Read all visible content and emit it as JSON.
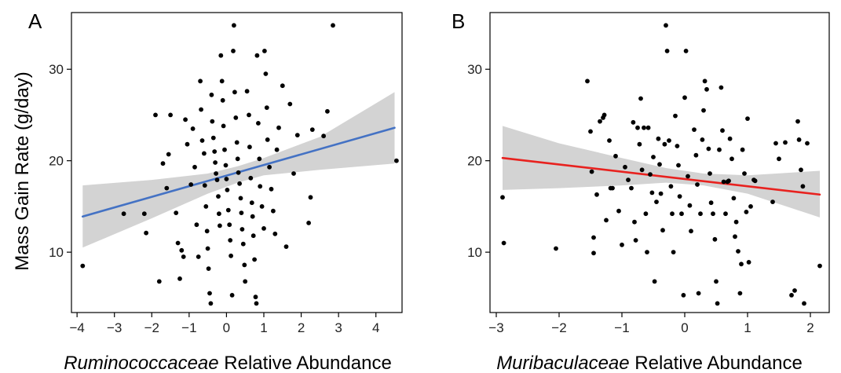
{
  "y_axis_title": "Mass Gain Rate (g/day)",
  "chart_data": [
    {
      "type": "scatter",
      "panel_label": "A",
      "xlabel_italic": "Ruminococcaceae",
      "xlabel_rest": " Relative Abundance",
      "xlim": [
        -4.15,
        4.7
      ],
      "ylim": [
        3.4,
        36.2
      ],
      "xticks": [
        -4,
        -3,
        -2,
        -1,
        0,
        1,
        2,
        3,
        4
      ],
      "yticks": [
        10,
        20,
        30
      ],
      "fit_color": "#4472c4",
      "band_color": "#d3d3d3",
      "fit": {
        "x0": -3.85,
        "y0": 13.9,
        "x1": 4.5,
        "y1": 23.6
      },
      "band": {
        "x": [
          -3.85,
          -2.0,
          -0.5,
          0.3,
          1.0,
          2.5,
          4.5
        ],
        "upper": [
          17.3,
          17.9,
          18.6,
          19.4,
          20.3,
          22.6,
          27.5
        ],
        "lower": [
          10.5,
          13.7,
          16.4,
          17.6,
          18.4,
          19.0,
          19.7
        ]
      },
      "points": [
        [
          -3.85,
          8.5
        ],
        [
          -2.75,
          14.2
        ],
        [
          -2.2,
          14.2
        ],
        [
          -2.15,
          12.1
        ],
        [
          -1.9,
          25.0
        ],
        [
          -1.8,
          6.8
        ],
        [
          -1.7,
          19.7
        ],
        [
          -1.6,
          17.0
        ],
        [
          -1.55,
          20.7
        ],
        [
          -1.5,
          25.0
        ],
        [
          -1.35,
          14.3
        ],
        [
          -1.3,
          11.0
        ],
        [
          -1.25,
          7.1
        ],
        [
          -1.2,
          10.2
        ],
        [
          -1.15,
          9.5
        ],
        [
          -1.1,
          24.5
        ],
        [
          -1.05,
          21.8
        ],
        [
          -0.95,
          17.4
        ],
        [
          -0.9,
          23.5
        ],
        [
          -0.85,
          19.3
        ],
        [
          -0.8,
          13.0
        ],
        [
          -0.75,
          9.5
        ],
        [
          -0.7,
          28.7
        ],
        [
          -0.68,
          25.6
        ],
        [
          -0.65,
          22.2
        ],
        [
          -0.6,
          20.8
        ],
        [
          -0.58,
          17.3
        ],
        [
          -0.55,
          15.0
        ],
        [
          -0.52,
          12.3
        ],
        [
          -0.5,
          10.4
        ],
        [
          -0.48,
          8.2
        ],
        [
          -0.45,
          5.5
        ],
        [
          -0.42,
          4.4
        ],
        [
          -0.4,
          27.2
        ],
        [
          -0.38,
          24.3
        ],
        [
          -0.35,
          22.5
        ],
        [
          -0.32,
          21.0
        ],
        [
          -0.3,
          19.8
        ],
        [
          -0.28,
          18.6
        ],
        [
          -0.25,
          17.9
        ],
        [
          -0.22,
          16.1
        ],
        [
          -0.2,
          14.2
        ],
        [
          -0.18,
          12.9
        ],
        [
          -0.15,
          31.5
        ],
        [
          -0.12,
          28.7
        ],
        [
          -0.1,
          26.6
        ],
        [
          -0.08,
          23.8
        ],
        [
          -0.05,
          21.2
        ],
        [
          -0.02,
          19.5
        ],
        [
          0.0,
          18.0
        ],
        [
          0.02,
          16.8
        ],
        [
          0.05,
          14.6
        ],
        [
          0.08,
          13.0
        ],
        [
          0.1,
          11.3
        ],
        [
          0.12,
          9.6
        ],
        [
          0.15,
          5.3
        ],
        [
          0.18,
          32.0
        ],
        [
          0.2,
          34.8
        ],
        [
          0.22,
          27.5
        ],
        [
          0.25,
          24.7
        ],
        [
          0.28,
          22.0
        ],
        [
          0.3,
          20.2
        ],
        [
          0.32,
          18.7
        ],
        [
          0.35,
          17.5
        ],
        [
          0.38,
          15.9
        ],
        [
          0.4,
          14.3
        ],
        [
          0.42,
          12.5
        ],
        [
          0.45,
          10.9
        ],
        [
          0.48,
          8.6
        ],
        [
          0.5,
          6.8
        ],
        [
          0.55,
          27.6
        ],
        [
          0.6,
          25.0
        ],
        [
          0.62,
          21.5
        ],
        [
          0.65,
          18.1
        ],
        [
          0.68,
          15.4
        ],
        [
          0.7,
          13.9
        ],
        [
          0.72,
          11.8
        ],
        [
          0.75,
          9.2
        ],
        [
          0.78,
          5.1
        ],
        [
          0.8,
          4.4
        ],
        [
          0.82,
          31.5
        ],
        [
          0.85,
          24.1
        ],
        [
          0.88,
          20.2
        ],
        [
          0.9,
          17.2
        ],
        [
          0.95,
          15.0
        ],
        [
          1.0,
          12.6
        ],
        [
          1.02,
          32.0
        ],
        [
          1.05,
          29.5
        ],
        [
          1.08,
          25.8
        ],
        [
          1.1,
          22.3
        ],
        [
          1.15,
          19.3
        ],
        [
          1.2,
          16.9
        ],
        [
          1.25,
          14.5
        ],
        [
          1.3,
          12.0
        ],
        [
          1.35,
          21.2
        ],
        [
          1.4,
          23.6
        ],
        [
          1.5,
          28.2
        ],
        [
          1.6,
          10.6
        ],
        [
          1.7,
          26.2
        ],
        [
          1.8,
          18.6
        ],
        [
          1.9,
          22.8
        ],
        [
          2.2,
          13.2
        ],
        [
          2.25,
          16.0
        ],
        [
          2.3,
          23.4
        ],
        [
          2.6,
          22.7
        ],
        [
          2.7,
          25.4
        ],
        [
          2.85,
          34.8
        ],
        [
          4.55,
          20.0
        ]
      ]
    },
    {
      "type": "scatter",
      "panel_label": "B",
      "xlabel_italic": "Muribaculaceae",
      "xlabel_rest": " Relative Abundance",
      "xlim": [
        -3.1,
        2.3
      ],
      "ylim": [
        3.4,
        36.2
      ],
      "xticks": [
        -3,
        -2,
        -1,
        0,
        1,
        2
      ],
      "yticks": [
        10,
        20,
        30
      ],
      "fit_color": "#e8221f",
      "band_color": "#d3d3d3",
      "fit": {
        "x0": -2.9,
        "y0": 20.3,
        "x1": 2.15,
        "y1": 16.3
      },
      "band": {
        "x": [
          -2.9,
          -2.0,
          -1.0,
          -0.3,
          0.3,
          1.0,
          2.15
        ],
        "upper": [
          23.8,
          21.9,
          20.3,
          19.2,
          18.6,
          18.4,
          18.9
        ],
        "lower": [
          16.8,
          17.0,
          17.3,
          17.6,
          17.3,
          16.4,
          13.8
        ]
      },
      "points": [
        [
          -2.9,
          16.0
        ],
        [
          -2.88,
          11.0
        ],
        [
          -2.05,
          10.4
        ],
        [
          -1.55,
          28.7
        ],
        [
          -1.5,
          23.2
        ],
        [
          -1.48,
          18.8
        ],
        [
          -1.45,
          11.6
        ],
        [
          -1.45,
          9.9
        ],
        [
          -1.4,
          16.3
        ],
        [
          -1.35,
          24.3
        ],
        [
          -1.3,
          24.7
        ],
        [
          -1.28,
          25.0
        ],
        [
          -1.25,
          13.5
        ],
        [
          -1.2,
          22.2
        ],
        [
          -1.18,
          17.0
        ],
        [
          -1.15,
          17.0
        ],
        [
          -1.1,
          20.5
        ],
        [
          -1.05,
          14.5
        ],
        [
          -1.0,
          10.8
        ],
        [
          -0.95,
          19.3
        ],
        [
          -0.9,
          17.9
        ],
        [
          -0.85,
          17.0
        ],
        [
          -0.82,
          24.2
        ],
        [
          -0.8,
          13.3
        ],
        [
          -0.78,
          11.3
        ],
        [
          -0.75,
          23.6
        ],
        [
          -0.72,
          21.8
        ],
        [
          -0.7,
          26.8
        ],
        [
          -0.68,
          19.0
        ],
        [
          -0.65,
          23.6
        ],
        [
          -0.62,
          14.2
        ],
        [
          -0.6,
          10.0
        ],
        [
          -0.58,
          23.6
        ],
        [
          -0.55,
          18.5
        ],
        [
          -0.52,
          16.5
        ],
        [
          -0.5,
          20.4
        ],
        [
          -0.48,
          6.8
        ],
        [
          -0.45,
          15.5
        ],
        [
          -0.42,
          22.4
        ],
        [
          -0.4,
          19.6
        ],
        [
          -0.38,
          16.4
        ],
        [
          -0.35,
          12.4
        ],
        [
          -0.32,
          21.8
        ],
        [
          -0.3,
          34.8
        ],
        [
          -0.28,
          32.0
        ],
        [
          -0.25,
          22.2
        ],
        [
          -0.22,
          17.2
        ],
        [
          -0.2,
          14.2
        ],
        [
          -0.18,
          10.0
        ],
        [
          -0.15,
          24.9
        ],
        [
          -0.12,
          21.6
        ],
        [
          -0.1,
          19.5
        ],
        [
          -0.08,
          16.1
        ],
        [
          -0.05,
          14.2
        ],
        [
          -0.02,
          5.3
        ],
        [
          0.0,
          26.9
        ],
        [
          0.02,
          32.0
        ],
        [
          0.05,
          18.3
        ],
        [
          0.08,
          15.1
        ],
        [
          0.1,
          12.3
        ],
        [
          0.15,
          23.4
        ],
        [
          0.18,
          20.6
        ],
        [
          0.2,
          17.4
        ],
        [
          0.22,
          5.5
        ],
        [
          0.25,
          14.2
        ],
        [
          0.28,
          22.3
        ],
        [
          0.3,
          25.5
        ],
        [
          0.32,
          28.7
        ],
        [
          0.35,
          27.8
        ],
        [
          0.38,
          21.3
        ],
        [
          0.4,
          18.6
        ],
        [
          0.42,
          15.4
        ],
        [
          0.45,
          14.2
        ],
        [
          0.48,
          11.4
        ],
        [
          0.5,
          6.8
        ],
        [
          0.52,
          4.4
        ],
        [
          0.55,
          21.2
        ],
        [
          0.58,
          28.0
        ],
        [
          0.6,
          23.3
        ],
        [
          0.62,
          17.7
        ],
        [
          0.65,
          14.2
        ],
        [
          0.68,
          17.7
        ],
        [
          0.7,
          17.8
        ],
        [
          0.72,
          22.4
        ],
        [
          0.75,
          20.2
        ],
        [
          0.78,
          15.9
        ],
        [
          0.8,
          11.7
        ],
        [
          0.82,
          13.3
        ],
        [
          0.85,
          10.1
        ],
        [
          0.88,
          5.5
        ],
        [
          0.9,
          8.7
        ],
        [
          0.92,
          21.2
        ],
        [
          0.95,
          18.6
        ],
        [
          0.98,
          14.4
        ],
        [
          1.0,
          24.6
        ],
        [
          1.02,
          8.9
        ],
        [
          1.05,
          15.0
        ],
        [
          1.1,
          17.9
        ],
        [
          1.12,
          17.8
        ],
        [
          1.4,
          15.5
        ],
        [
          1.45,
          21.9
        ],
        [
          1.5,
          20.2
        ],
        [
          1.6,
          22.0
        ],
        [
          1.7,
          5.3
        ],
        [
          1.75,
          5.8
        ],
        [
          1.8,
          24.3
        ],
        [
          1.82,
          22.3
        ],
        [
          1.85,
          19.0
        ],
        [
          1.88,
          17.2
        ],
        [
          1.9,
          4.4
        ],
        [
          1.95,
          21.9
        ],
        [
          2.15,
          8.5
        ]
      ]
    }
  ]
}
